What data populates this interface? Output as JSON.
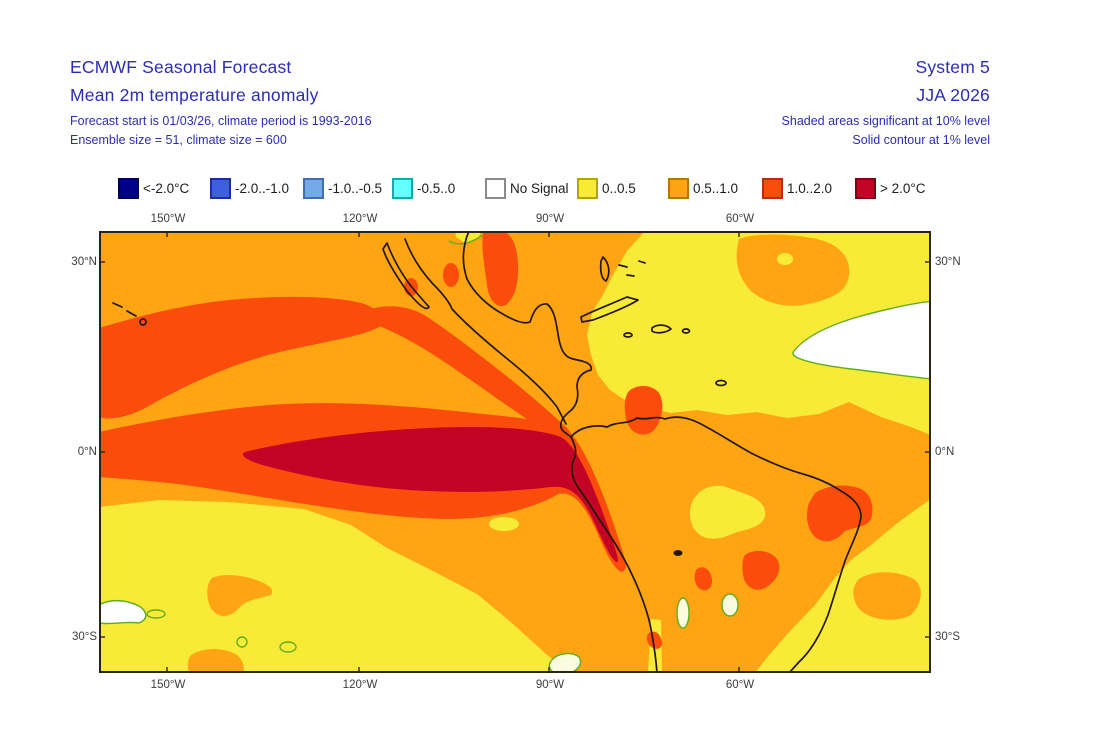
{
  "header": {
    "title_line1": "ECMWF Seasonal Forecast",
    "title_line2": "Mean 2m temperature anomaly",
    "subtitle_line1": "Forecast start is 01/03/26, climate period is 1993-2016",
    "subtitle_line2": "Ensemble size = 51, climate size = 600",
    "right_line1": "System 5",
    "right_line2": "JJA 2026",
    "right_note1": "Shaded areas significant at 10% level",
    "right_note2": "Solid contour at 1% level"
  },
  "legend": {
    "items": [
      {
        "label": "<-2.0°C",
        "color": "#00008B",
        "border": "#00004f"
      },
      {
        "label": "-2.0..-1.0",
        "color": "#3D5FE0",
        "border": "#1c2f9e"
      },
      {
        "label": "-1.0..-0.5",
        "color": "#74AAE8",
        "border": "#3f6fb0"
      },
      {
        "label": "-0.5..0",
        "color": "#66FFFF",
        "border": "#18a8a8"
      },
      {
        "label": "No Signal",
        "color": "#FFFFFF",
        "border": "#8a8a8a"
      },
      {
        "label": "0..0.5",
        "color": "#F8EB37",
        "border": "#b3a409"
      },
      {
        "label": "0.5..1.0",
        "color": "#FFA513",
        "border": "#bb7403"
      },
      {
        "label": "1.0..2.0",
        "color": "#FA4D0B",
        "border": "#b03305"
      },
      {
        "label": "> 2.0°C",
        "color": "#C40426",
        "border": "#7d0317"
      }
    ]
  },
  "map": {
    "axis": {
      "top": [
        "150°W",
        "120°W",
        "90°W",
        "60°W"
      ],
      "bottom": [
        "150°W",
        "120°W",
        "90°W",
        "60°W"
      ],
      "left": [
        "30°N",
        "0°N",
        "30°S"
      ],
      "right": [
        "30°N",
        "0°N",
        "30°S"
      ]
    }
  },
  "palette": {
    "orange": "#FFA513",
    "yellow": "#F8EB37",
    "red": "#FA4D0B",
    "crimson": "#C40426",
    "green_contour": "#5FAE20",
    "coastline": "#241708",
    "no_signal": "#FFFFFF",
    "text_blue": "#2C2CB8",
    "axis_text": "#3d3d3d",
    "map_border": "#2a2415"
  }
}
